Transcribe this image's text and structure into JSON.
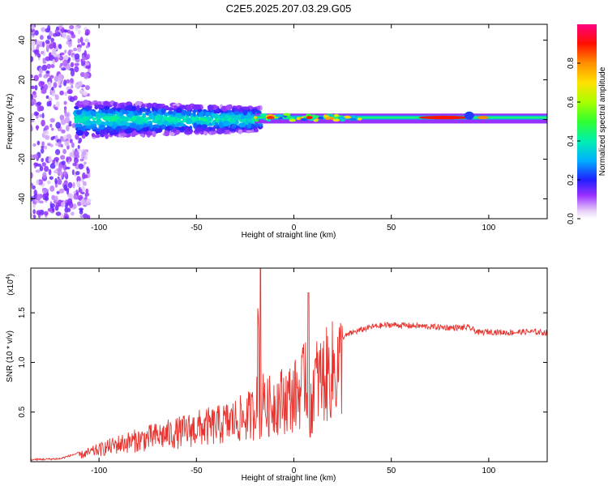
{
  "title": "C2E5.2025.207.03.29.G05",
  "chart_data": [
    {
      "type": "heatmap",
      "xlabel": "Height of straight line (km)",
      "ylabel": "Frequency (Hz)",
      "xlim": [
        -135,
        130
      ],
      "ylim": [
        -50,
        48
      ],
      "x_ticks": [
        -100,
        -50,
        0,
        50,
        100
      ],
      "y_ticks": [
        -40,
        -20,
        0,
        20,
        40
      ],
      "colorbar": {
        "label": "Normalized spectral amplitude",
        "range": [
          0,
          1
        ],
        "ticks": [
          0.0,
          0.2,
          0.4,
          0.6,
          0.8
        ],
        "colormap": [
          "#ffffff",
          "#d9b6f2",
          "#7f00ff",
          "#0000ff",
          "#00c0ff",
          "#00ffa0",
          "#40ff00",
          "#c8ff00",
          "#ffd000",
          "#ff8000",
          "#ff0000",
          "#ff0080"
        ]
      },
      "bands": [
        {
          "x": [
            -135,
            -108
          ],
          "f_spread": 50,
          "amplitude": 0.12,
          "note_color": "scattered purple"
        },
        {
          "x": [
            -110,
            -20
          ],
          "f_center": 0,
          "f_spread": 8,
          "amplitude": 0.35
        },
        {
          "x": [
            -20,
            130
          ],
          "f_center": 1,
          "f_spread": 2,
          "amplitude": 0.45
        },
        {
          "x": [
            65,
            90
          ],
          "f_center": 1,
          "f_spread": 2,
          "amplitude": 1.0
        }
      ]
    },
    {
      "type": "line",
      "xlabel": "Height of straight line (km)",
      "ylabel": "SNR (10 * v/v)",
      "yscale_label": "(x10",
      "yscale_exp": "4",
      "xlim": [
        -135,
        130
      ],
      "ylim": [
        0,
        1.95
      ],
      "x_ticks": [
        -100,
        -50,
        0,
        50,
        100
      ],
      "y_ticks": [
        0.5,
        1.0,
        1.5
      ],
      "color": "#e8332e",
      "series": [
        {
          "x": [
            -135,
            -120,
            -110,
            -100,
            -90,
            -80,
            -70,
            -60,
            -50,
            -40,
            -30,
            -25,
            -20,
            -17,
            -15,
            -10,
            -5,
            0,
            5,
            7,
            8,
            10,
            15,
            20,
            25,
            30,
            40,
            50,
            60,
            70,
            80,
            90,
            95,
            100,
            110,
            120,
            130
          ],
          "y": [
            0.01,
            0.02,
            0.08,
            0.15,
            0.22,
            0.27,
            0.32,
            0.36,
            0.42,
            0.45,
            0.52,
            0.55,
            0.62,
            1.95,
            0.65,
            0.75,
            0.78,
            0.82,
            0.95,
            1.7,
            0.25,
            1.0,
            1.05,
            1.15,
            1.25,
            1.3,
            1.36,
            1.38,
            1.37,
            1.36,
            1.35,
            1.35,
            1.3,
            1.31,
            1.3,
            1.31,
            1.3
          ]
        }
      ]
    }
  ]
}
